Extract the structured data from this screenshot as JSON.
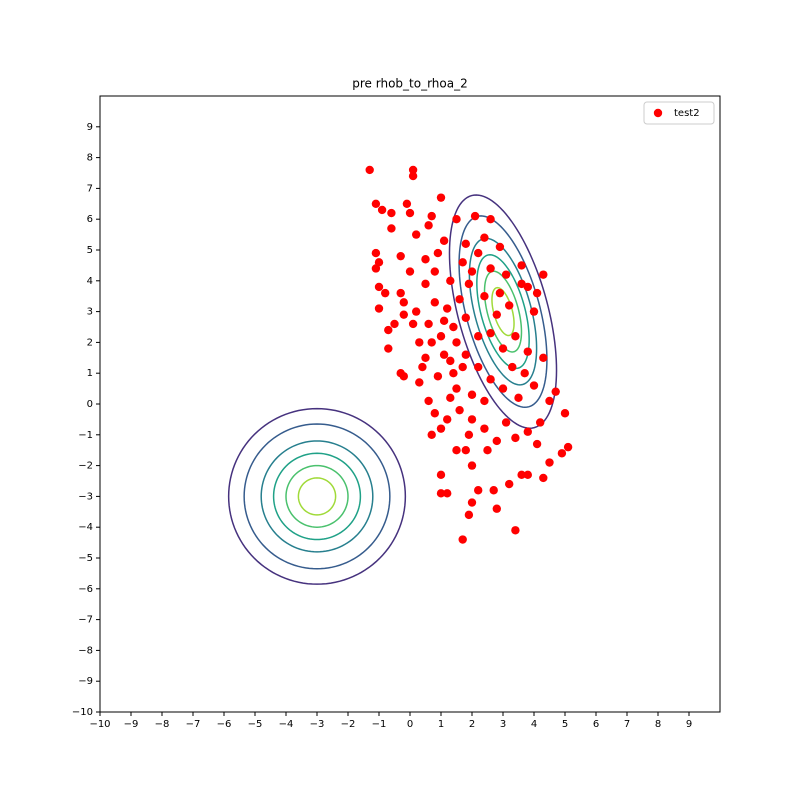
{
  "chart_data": {
    "type": "scatter",
    "title": "pre rhob_to_rhoa_2",
    "xlim": [
      -10,
      10
    ],
    "ylim": [
      -10,
      10
    ],
    "xticks": [
      {
        "value": -10,
        "label": "−10"
      },
      {
        "value": -9,
        "label": "−9"
      },
      {
        "value": -8,
        "label": "−8"
      },
      {
        "value": -7,
        "label": "−7"
      },
      {
        "value": -6,
        "label": "−6"
      },
      {
        "value": -5,
        "label": "−5"
      },
      {
        "value": -4,
        "label": "−4"
      },
      {
        "value": -3,
        "label": "−3"
      },
      {
        "value": -2,
        "label": "−2"
      },
      {
        "value": -1,
        "label": "−1"
      },
      0,
      1,
      2,
      3,
      4,
      5,
      6,
      7,
      8,
      9
    ],
    "yticks": [
      {
        "value": -10,
        "label": "−10"
      },
      {
        "value": -9,
        "label": "−9"
      },
      {
        "value": -8,
        "label": "−8"
      },
      {
        "value": -7,
        "label": "−7"
      },
      {
        "value": -6,
        "label": "−6"
      },
      {
        "value": -5,
        "label": "−5"
      },
      {
        "value": -4,
        "label": "−4"
      },
      {
        "value": -3,
        "label": "−3"
      },
      {
        "value": -2,
        "label": "−2"
      },
      {
        "value": -1,
        "label": "−1"
      },
      0,
      1,
      2,
      3,
      4,
      5,
      6,
      7,
      8,
      9
    ],
    "legend": "upper right",
    "series": [
      {
        "name": "test2",
        "color": "#ff0000",
        "x": [
          -1.3,
          0.1,
          0.1,
          -1.1,
          -0.9,
          -0.6,
          -0.1,
          0,
          0.7,
          1,
          0.6,
          -0.6,
          0.2,
          -1.1,
          -1,
          -1.1,
          -0.3,
          0,
          0.5,
          0.9,
          1.1,
          1.5,
          2.1,
          2.6,
          1.8,
          -1,
          -0.8,
          -0.3,
          -0.2,
          -1,
          -0.7,
          -0.5,
          -0.2,
          0.2,
          -0.7,
          -0.3,
          -0.2,
          0.3,
          0.6,
          0.8,
          0.7,
          1,
          1,
          1,
          1.2,
          1.5,
          1.8,
          2,
          2.2,
          2.7,
          2,
          1.9,
          1.7,
          2.8,
          3.2,
          3.4,
          3.6,
          3.8,
          4.3,
          4.5,
          4.9,
          5.1,
          5.0,
          4.5,
          4.7,
          4.3,
          3.8,
          3.4,
          4.0,
          4.1,
          4.3,
          3.8,
          3.6,
          3.1,
          3.6,
          2.9,
          2.6,
          2.9,
          2.4,
          2.2,
          2.0,
          1.9,
          1.6,
          1.2,
          0.8,
          0.5,
          0.6,
          1.0,
          1.4,
          1.8,
          2.2,
          2.6,
          3.0,
          3.3,
          3.7,
          4.0,
          3.5,
          3.0,
          2.6,
          2.2,
          1.8,
          1.4,
          1.1,
          0.9,
          0.5,
          0.3,
          0.1,
          1.3,
          1.6,
          2.0,
          2.4,
          2.8,
          3.1,
          3.4,
          3.8,
          4.2,
          4.1,
          2.5,
          1.9,
          1.2,
          1.5,
          2.0,
          2.4,
          1.7,
          1.3,
          1.5,
          1.1,
          0.7,
          0.4,
          2.8,
          3.2,
          2.4,
          1.3,
          0.8,
          1.7
        ],
        "y": [
          7.6,
          7.6,
          7.4,
          6.5,
          6.3,
          6.2,
          6.5,
          6.2,
          6.1,
          6.7,
          5.8,
          5.7,
          5.5,
          4.9,
          4.6,
          4.4,
          4.8,
          4.3,
          4.7,
          4.9,
          5.3,
          6.0,
          6.1,
          6.0,
          5.2,
          3.8,
          3.6,
          3.6,
          3.3,
          3.1,
          2.4,
          2.6,
          2.9,
          3.0,
          1.8,
          1.0,
          0.9,
          0.7,
          0.1,
          -0.3,
          -1.0,
          -0.8,
          -2.3,
          -2.9,
          -2.9,
          -1.5,
          -1.5,
          -2.0,
          -2.8,
          -2.8,
          -3.2,
          -3.6,
          -4.4,
          -3.4,
          -2.6,
          -4.1,
          -2.3,
          -2.3,
          -2.4,
          -1.9,
          -1.6,
          -1.4,
          -0.3,
          0.1,
          0.4,
          1.5,
          1.7,
          2.2,
          3.0,
          3.6,
          4.2,
          3.8,
          3.9,
          4.2,
          4.5,
          3.6,
          4.4,
          5.1,
          5.4,
          4.9,
          4.3,
          3.9,
          3.4,
          3.1,
          3.3,
          3.9,
          2.6,
          2.2,
          2.5,
          2.8,
          2.2,
          2.3,
          1.8,
          1.2,
          1.0,
          0.6,
          0.2,
          0.5,
          0.8,
          1.2,
          1.6,
          1.0,
          1.6,
          0.9,
          1.5,
          2.0,
          2.6,
          0.2,
          -0.2,
          -0.5,
          -0.8,
          -1.2,
          -0.6,
          -1.1,
          -0.9,
          -0.6,
          -1.3,
          -1.5,
          -1.0,
          -0.5,
          0.5,
          0.3,
          0.1,
          1.2,
          1.4,
          2.0,
          2.7,
          2.0,
          1.2,
          2.9,
          3.2,
          3.5,
          4.0,
          4.3,
          4.6
        ]
      }
    ],
    "contour_colors": [
      "#46327e",
      "#365c8d",
      "#277f8e",
      "#1fa187",
      "#4ac16d",
      "#a0da39"
    ],
    "contours": [
      {
        "center": [
          -3,
          -3
        ],
        "angle": 0,
        "rings": [
          [
            2.85,
            2.85
          ],
          [
            2.35,
            2.35
          ],
          [
            1.8,
            1.8
          ],
          [
            1.4,
            1.4
          ],
          [
            1.0,
            1.0
          ],
          [
            0.6,
            0.6
          ]
        ]
      },
      {
        "center": [
          3,
          3
        ],
        "angle": 105,
        "rings": [
          [
            3.9,
            1.45
          ],
          [
            3.2,
            1.19
          ],
          [
            2.45,
            0.91
          ],
          [
            1.9,
            0.71
          ],
          [
            1.35,
            0.5
          ],
          [
            0.8,
            0.3
          ]
        ]
      }
    ]
  }
}
